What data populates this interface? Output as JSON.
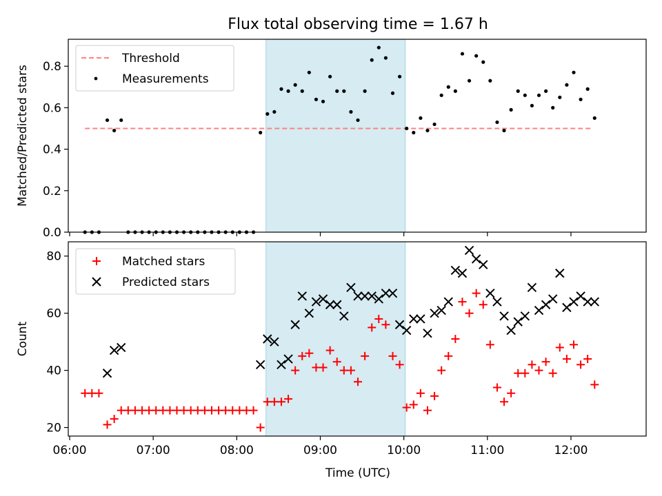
{
  "chart_data": [
    {
      "type": "scatter",
      "title": "Flux total observing time = 1.67 h",
      "xlabel": "",
      "ylabel": "Matched/Predicted stars",
      "xlim": [
        "05:59",
        "12:54"
      ],
      "ylim": [
        0,
        0.93
      ],
      "yticks": [
        0.0,
        0.2,
        0.4,
        0.6,
        0.8
      ],
      "ytick_labels": [
        "0.0",
        "0.2",
        "0.4",
        "0.6",
        "0.8"
      ],
      "shaded_region": {
        "x": [
          "08:21",
          "10:01"
        ],
        "color": "#add8e6"
      },
      "legend": {
        "placement": "top-left",
        "entries": [
          "Threshold",
          "Measurements"
        ]
      },
      "series": [
        {
          "name": "Threshold",
          "style": "dashed-line",
          "color": "#ff8080",
          "x": [
            "06:11",
            "12:16"
          ],
          "y": [
            0.5,
            0.5
          ]
        },
        {
          "name": "Measurements",
          "style": "dot",
          "color": "#000000",
          "x": [
            "06:11",
            "06:16",
            "06:21",
            "06:27",
            "06:32",
            "06:37",
            "06:42",
            "06:47",
            "06:52",
            "06:57",
            "07:02",
            "07:07",
            "07:12",
            "07:17",
            "07:22",
            "07:27",
            "07:32",
            "07:37",
            "07:42",
            "07:47",
            "07:52",
            "07:57",
            "08:02",
            "08:07",
            "08:12",
            "08:17",
            "08:22",
            "08:27",
            "08:32",
            "08:37",
            "08:42",
            "08:47",
            "08:52",
            "08:57",
            "09:02",
            "09:07",
            "09:12",
            "09:17",
            "09:22",
            "09:27",
            "09:32",
            "09:37",
            "09:42",
            "09:47",
            "09:52",
            "09:57",
            "10:02",
            "10:07",
            "10:12",
            "10:17",
            "10:22",
            "10:27",
            "10:32",
            "10:37",
            "10:42",
            "10:47",
            "10:52",
            "10:57",
            "11:02",
            "11:07",
            "11:12",
            "11:17",
            "11:22",
            "11:27",
            "11:32",
            "11:37",
            "11:42",
            "11:47",
            "11:52",
            "11:57",
            "12:02",
            "12:07",
            "12:12",
            "12:17"
          ],
          "y": [
            0,
            0,
            0,
            0.54,
            0.49,
            0.54,
            0,
            0,
            0,
            0,
            0,
            0,
            0,
            0,
            0,
            0,
            0,
            0,
            0,
            0,
            0,
            0,
            0,
            0,
            0,
            0.48,
            0.57,
            0.58,
            0.69,
            0.68,
            0.71,
            0.68,
            0.77,
            0.64,
            0.63,
            0.75,
            0.68,
            0.68,
            0.58,
            0.54,
            0.68,
            0.83,
            0.89,
            0.84,
            0.67,
            0.75,
            0.5,
            0.48,
            0.55,
            0.49,
            0.52,
            0.66,
            0.7,
            0.68,
            0.86,
            0.73,
            0.85,
            0.82,
            0.73,
            0.53,
            0.49,
            0.59,
            0.68,
            0.66,
            0.61,
            0.66,
            0.68,
            0.6,
            0.65,
            0.71,
            0.77,
            0.64,
            0.69,
            0.55
          ]
        }
      ]
    },
    {
      "type": "scatter",
      "title": "",
      "xlabel": "Time (UTC)",
      "ylabel": "Count",
      "xlim": [
        "05:59",
        "12:54"
      ],
      "ylim": [
        17,
        85
      ],
      "yticks": [
        20,
        40,
        60,
        80
      ],
      "ytick_labels": [
        "20",
        "40",
        "60",
        "80"
      ],
      "xticks": [
        "06:00",
        "07:00",
        "08:00",
        "09:00",
        "10:00",
        "11:00",
        "12:00"
      ],
      "shaded_region": {
        "x": [
          "08:21",
          "10:01"
        ],
        "color": "#add8e6"
      },
      "legend": {
        "placement": "top-left",
        "entries": [
          "Matched stars",
          "Predicted stars"
        ]
      },
      "series": [
        {
          "name": "Matched stars",
          "marker": "plus",
          "color": "#ff0000",
          "x": [
            "06:11",
            "06:16",
            "06:21",
            "06:27",
            "06:32",
            "06:37",
            "06:42",
            "06:47",
            "06:52",
            "06:57",
            "07:02",
            "07:07",
            "07:12",
            "07:17",
            "07:22",
            "07:27",
            "07:32",
            "07:37",
            "07:42",
            "07:47",
            "07:52",
            "07:57",
            "08:02",
            "08:07",
            "08:12",
            "08:17",
            "08:22",
            "08:27",
            "08:32",
            "08:37",
            "08:42",
            "08:47",
            "08:52",
            "08:57",
            "09:02",
            "09:07",
            "09:12",
            "09:17",
            "09:22",
            "09:27",
            "09:32",
            "09:37",
            "09:42",
            "09:47",
            "09:52",
            "09:57",
            "10:02",
            "10:07",
            "10:12",
            "10:17",
            "10:22",
            "10:27",
            "10:32",
            "10:37",
            "10:42",
            "10:47",
            "10:52",
            "10:57",
            "11:02",
            "11:07",
            "11:12",
            "11:17",
            "11:22",
            "11:27",
            "11:32",
            "11:37",
            "11:42",
            "11:47",
            "11:52",
            "11:57",
            "12:02",
            "12:07",
            "12:12",
            "12:17"
          ],
          "y": [
            32,
            32,
            32,
            21,
            23,
            26,
            26,
            26,
            26,
            26,
            26,
            26,
            26,
            26,
            26,
            26,
            26,
            26,
            26,
            26,
            26,
            26,
            26,
            26,
            26,
            20,
            29,
            29,
            29,
            30,
            40,
            45,
            46,
            41,
            41,
            47,
            43,
            40,
            40,
            36,
            45,
            55,
            58,
            56,
            45,
            42,
            27,
            28,
            32,
            26,
            31,
            40,
            45,
            51,
            64,
            60,
            67,
            63,
            49,
            34,
            29,
            32,
            39,
            39,
            42,
            40,
            43,
            39,
            48,
            44,
            49,
            42,
            44,
            35
          ]
        },
        {
          "name": "Predicted stars",
          "marker": "x",
          "color": "#000000",
          "x": [
            "06:27",
            "06:32",
            "06:37",
            "08:17",
            "08:22",
            "08:27",
            "08:32",
            "08:37",
            "08:42",
            "08:47",
            "08:52",
            "08:57",
            "09:02",
            "09:07",
            "09:12",
            "09:17",
            "09:22",
            "09:27",
            "09:32",
            "09:37",
            "09:42",
            "09:47",
            "09:52",
            "09:57",
            "10:02",
            "10:07",
            "10:12",
            "10:17",
            "10:22",
            "10:27",
            "10:32",
            "10:37",
            "10:42",
            "10:47",
            "10:52",
            "10:57",
            "11:02",
            "11:07",
            "11:12",
            "11:17",
            "11:22",
            "11:27",
            "11:32",
            "11:37",
            "11:42",
            "11:47",
            "11:52",
            "11:57",
            "12:02",
            "12:07",
            "12:12",
            "12:17"
          ],
          "y": [
            39,
            47,
            48,
            42,
            51,
            50,
            42,
            44,
            56,
            66,
            60,
            64,
            65,
            63,
            63,
            59,
            69,
            66,
            66,
            66,
            65,
            67,
            67,
            56,
            54,
            58,
            58,
            53,
            60,
            61,
            64,
            75,
            74,
            82,
            79,
            77,
            67,
            64,
            59,
            54,
            57,
            59,
            69,
            61,
            63,
            65,
            74,
            62,
            64,
            66,
            64,
            64
          ]
        }
      ]
    }
  ]
}
